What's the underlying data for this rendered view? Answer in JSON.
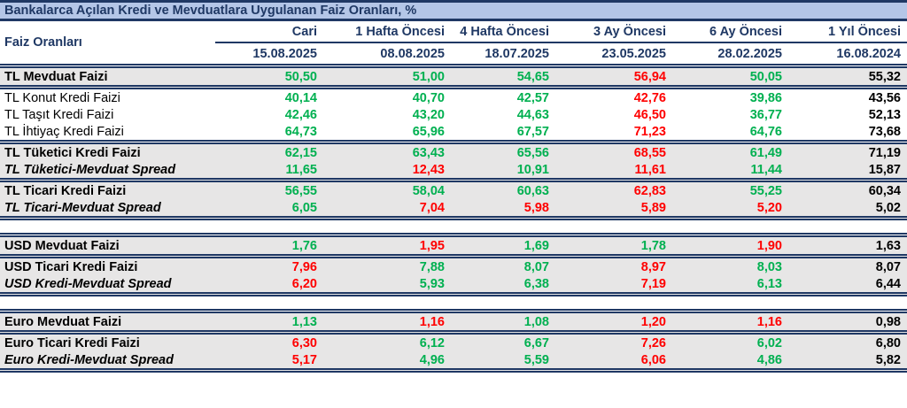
{
  "title": "Bankalarca Açılan Kredi ve Mevduatlara Uygulanan Faiz Oranları, %",
  "colors": {
    "navy": "#1F3864",
    "title_bg": "#B4C6E7",
    "green": "#00B050",
    "red": "#FF0000",
    "row_shade": "#E7E6E6"
  },
  "table": {
    "corner_label": "Faiz Oranları",
    "columns": [
      {
        "label": "Cari",
        "date": "15.08.2025"
      },
      {
        "label": "1 Hafta Öncesi",
        "date": "08.08.2025"
      },
      {
        "label": "4 Hafta Öncesi",
        "date": "18.07.2025"
      },
      {
        "label": "3 Ay Öncesi",
        "date": "23.05.2025"
      },
      {
        "label": "6 Ay Öncesi",
        "date": "28.02.2025"
      },
      {
        "label": "1 Yıl Öncesi",
        "date": "16.08.2024"
      }
    ],
    "rows": [
      {
        "type": "data",
        "label": "TL Mevduat Faizi",
        "label_style": "bold",
        "shaded": true,
        "border_top": false,
        "values": [
          "50,50",
          "51,00",
          "54,65",
          "56,94",
          "50,05",
          "55,32"
        ],
        "value_colors": [
          "green",
          "green",
          "green",
          "red",
          "green",
          "black"
        ]
      },
      {
        "type": "data",
        "label": "TL Konut Kredi Faizi",
        "label_style": "regular",
        "shaded": false,
        "border_top": true,
        "values": [
          "40,14",
          "40,70",
          "42,57",
          "42,76",
          "39,86",
          "43,56"
        ],
        "value_colors": [
          "green",
          "green",
          "green",
          "red",
          "green",
          "black"
        ]
      },
      {
        "type": "data",
        "label": "TL Taşıt Kredi Faizi",
        "label_style": "regular",
        "shaded": false,
        "border_top": false,
        "values": [
          "42,46",
          "43,20",
          "44,63",
          "46,50",
          "36,77",
          "52,13"
        ],
        "value_colors": [
          "green",
          "green",
          "green",
          "red",
          "green",
          "black"
        ]
      },
      {
        "type": "data",
        "label": "TL İhtiyaç Kredi Faizi",
        "label_style": "regular",
        "shaded": false,
        "border_top": false,
        "values": [
          "64,73",
          "65,96",
          "67,57",
          "71,23",
          "64,76",
          "73,68"
        ],
        "value_colors": [
          "green",
          "green",
          "green",
          "red",
          "green",
          "black"
        ]
      },
      {
        "type": "data",
        "label": "TL Tüketici Kredi Faizi",
        "label_style": "bold",
        "shaded": true,
        "border_top": true,
        "values": [
          "62,15",
          "63,43",
          "65,56",
          "68,55",
          "61,49",
          "71,19"
        ],
        "value_colors": [
          "green",
          "green",
          "green",
          "red",
          "green",
          "black"
        ]
      },
      {
        "type": "data",
        "label": "TL Tüketici-Mevduat Spread",
        "label_style": "bold-italic",
        "shaded": true,
        "border_top": false,
        "values": [
          "11,65",
          "12,43",
          "10,91",
          "11,61",
          "11,44",
          "15,87"
        ],
        "value_colors": [
          "green",
          "red",
          "green",
          "red",
          "green",
          "black"
        ]
      },
      {
        "type": "data",
        "label": "TL Ticari Kredi Faizi",
        "label_style": "bold",
        "shaded": true,
        "border_top": true,
        "values": [
          "56,55",
          "58,04",
          "60,63",
          "62,83",
          "55,25",
          "60,34"
        ],
        "value_colors": [
          "green",
          "green",
          "green",
          "red",
          "green",
          "black"
        ]
      },
      {
        "type": "data",
        "label": "TL Ticari-Mevduat Spread",
        "label_style": "bold-italic",
        "shaded": true,
        "border_top": false,
        "values": [
          "6,05",
          "7,04",
          "5,98",
          "5,89",
          "5,20",
          "5,02"
        ],
        "value_colors": [
          "green",
          "red",
          "red",
          "red",
          "red",
          "black"
        ]
      },
      {
        "type": "gap",
        "border_top": true
      },
      {
        "type": "data",
        "label": "USD Mevduat Faizi",
        "label_style": "bold",
        "shaded": true,
        "border_top": true,
        "values": [
          "1,76",
          "1,95",
          "1,69",
          "1,78",
          "1,90",
          "1,63"
        ],
        "value_colors": [
          "green",
          "red",
          "green",
          "green",
          "red",
          "black"
        ]
      },
      {
        "type": "data",
        "label": "USD Ticari Kredi Faizi",
        "label_style": "bold",
        "shaded": true,
        "border_top": true,
        "values": [
          "7,96",
          "7,88",
          "8,07",
          "8,97",
          "8,03",
          "8,07"
        ],
        "value_colors": [
          "red",
          "green",
          "green",
          "red",
          "green",
          "black"
        ]
      },
      {
        "type": "data",
        "label": "USD Kredi-Mevduat Spread",
        "label_style": "bold-italic",
        "shaded": true,
        "border_top": false,
        "values": [
          "6,20",
          "5,93",
          "6,38",
          "7,19",
          "6,13",
          "6,44"
        ],
        "value_colors": [
          "red",
          "green",
          "green",
          "red",
          "green",
          "black"
        ]
      },
      {
        "type": "gap",
        "border_top": true
      },
      {
        "type": "data",
        "label": "Euro Mevduat Faizi",
        "label_style": "bold",
        "shaded": true,
        "border_top": true,
        "values": [
          "1,13",
          "1,16",
          "1,08",
          "1,20",
          "1,16",
          "0,98"
        ],
        "value_colors": [
          "green",
          "red",
          "green",
          "red",
          "red",
          "black"
        ]
      },
      {
        "type": "data",
        "label": "Euro Ticari Kredi Faizi",
        "label_style": "bold",
        "shaded": true,
        "border_top": true,
        "values": [
          "6,30",
          "6,12",
          "6,67",
          "7,26",
          "6,02",
          "6,80"
        ],
        "value_colors": [
          "red",
          "green",
          "green",
          "red",
          "green",
          "black"
        ]
      },
      {
        "type": "data",
        "label": "Euro Kredi-Mevduat Spread",
        "label_style": "bold-italic",
        "shaded": true,
        "border_top": false,
        "values": [
          "5,17",
          "4,96",
          "5,59",
          "6,06",
          "4,86",
          "5,82"
        ],
        "value_colors": [
          "red",
          "green",
          "green",
          "red",
          "green",
          "black"
        ]
      }
    ]
  }
}
